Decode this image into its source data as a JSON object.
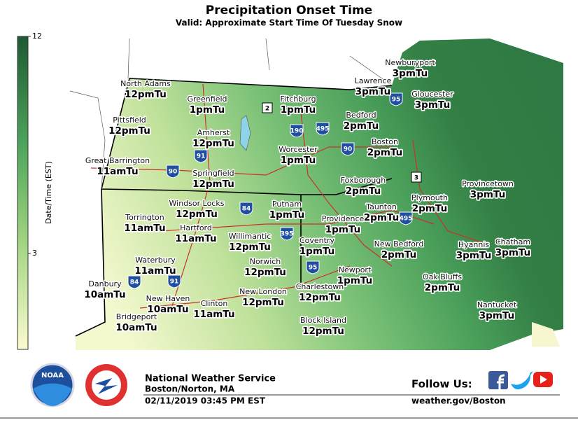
{
  "header": {
    "title": "Precipitation Onset Time",
    "subtitle": "Valid: Approximate Start Time Of Tuesday Snow"
  },
  "colorbar": {
    "label": "Date/Time (EST)",
    "top_tick": "12",
    "mid_tick": "3"
  },
  "cities": [
    {
      "name": "North Adams",
      "time": "12pmTu"
    },
    {
      "name": "Pittsfield",
      "time": "12pmTu"
    },
    {
      "name": "Great Barrington",
      "time": "11amTu"
    },
    {
      "name": "Greenfield",
      "time": "1pmTu"
    },
    {
      "name": "Amherst",
      "time": "12pmTu"
    },
    {
      "name": "Springfield",
      "time": "12pmTu"
    },
    {
      "name": "Fitchburg",
      "time": "1pmTu"
    },
    {
      "name": "Worcester",
      "time": "1pmTu"
    },
    {
      "name": "Lawrence",
      "time": "3pmTu"
    },
    {
      "name": "Newburyport",
      "time": "3pmTu"
    },
    {
      "name": "Gloucester",
      "time": "3pmTu"
    },
    {
      "name": "Bedford",
      "time": "2pmTu"
    },
    {
      "name": "Boston",
      "time": "2pmTu"
    },
    {
      "name": "Foxborough",
      "time": "2pmTu"
    },
    {
      "name": "Taunton",
      "time": "2pmTu"
    },
    {
      "name": "Plymouth",
      "time": "2pmTu"
    },
    {
      "name": "Provincetown",
      "time": "3pmTu"
    },
    {
      "name": "Chatham",
      "time": "3pmTu"
    },
    {
      "name": "Hyannis",
      "time": "3pmTu"
    },
    {
      "name": "New Bedford",
      "time": "2pmTu"
    },
    {
      "name": "Oak Bluffs",
      "time": "2pmTu"
    },
    {
      "name": "Nantucket",
      "time": "3pmTu"
    },
    {
      "name": "Providence",
      "time": "1pmTu"
    },
    {
      "name": "Coventry",
      "time": "1pmTu"
    },
    {
      "name": "Newport",
      "time": "1pmTu"
    },
    {
      "name": "Charlestown",
      "time": "12pmTu"
    },
    {
      "name": "Block Island",
      "time": "12pmTu"
    },
    {
      "name": "Putnam",
      "time": "1pmTu"
    },
    {
      "name": "Windsor Locks",
      "time": "12pmTu"
    },
    {
      "name": "Torrington",
      "time": "11amTu"
    },
    {
      "name": "Hartford",
      "time": "11amTu"
    },
    {
      "name": "Willimantic",
      "time": "12pmTu"
    },
    {
      "name": "Norwich",
      "time": "12pmTu"
    },
    {
      "name": "Waterbury",
      "time": "11amTu"
    },
    {
      "name": "Danbury",
      "time": "10amTu"
    },
    {
      "name": "New Haven",
      "time": "10amTu"
    },
    {
      "name": "Clinton",
      "time": "11amTu"
    },
    {
      "name": "New London",
      "time": "12pmTu"
    },
    {
      "name": "Bridgeport",
      "time": "10amTu"
    }
  ],
  "shields": [
    "2",
    "190",
    "495",
    "90",
    "95",
    "91",
    "90",
    "3",
    "84",
    "395",
    "495",
    "95",
    "84",
    "91"
  ],
  "footer": {
    "logo": "NOAA",
    "org": "National Weather Service",
    "office": "Boston/Norton, MA",
    "timestamp": "02/11/2019 03:45 PM EST",
    "follow": "Follow Us:",
    "url": "weather.gov/Boston"
  }
}
